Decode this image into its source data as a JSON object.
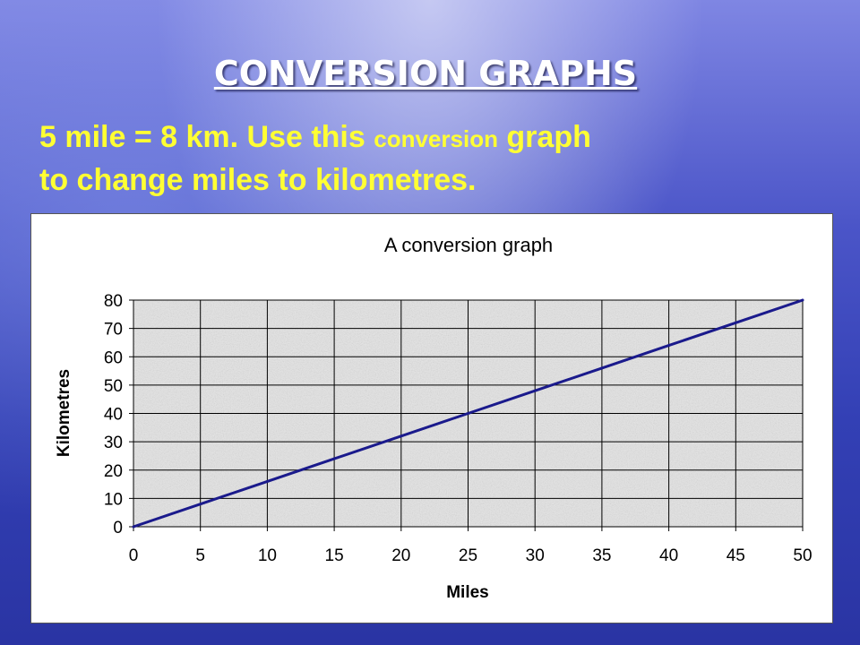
{
  "slide": {
    "title": "CONVERSION GRAPHS",
    "text_line1_a": "5 mile = 8 km.  Use this ",
    "text_line1_b": "conversion",
    "text_line1_c": " graph",
    "text_line2": "to change miles to kilometres."
  },
  "colors": {
    "text_yellow": "#ffff33",
    "line": "#1a1a8c",
    "plot_bg": "#e4e4e4"
  },
  "chart_data": {
    "type": "line",
    "title": "A conversion graph",
    "xlabel": "Miles",
    "ylabel": "Kilometres",
    "xlim": [
      0,
      50
    ],
    "ylim": [
      0,
      80
    ],
    "x_ticks": [
      "0",
      "5",
      "10",
      "15",
      "20",
      "25",
      "30",
      "35",
      "40",
      "45",
      "50"
    ],
    "y_ticks": [
      "0",
      "10",
      "20",
      "30",
      "40",
      "50",
      "60",
      "70",
      "80"
    ],
    "grid": true,
    "legend": "none",
    "series": [
      {
        "x": [
          0,
          5,
          10,
          15,
          20,
          25,
          30,
          35,
          40,
          45,
          50
        ],
        "y": [
          0,
          8,
          16,
          24,
          32,
          40,
          48,
          56,
          64,
          72,
          80
        ]
      }
    ]
  }
}
